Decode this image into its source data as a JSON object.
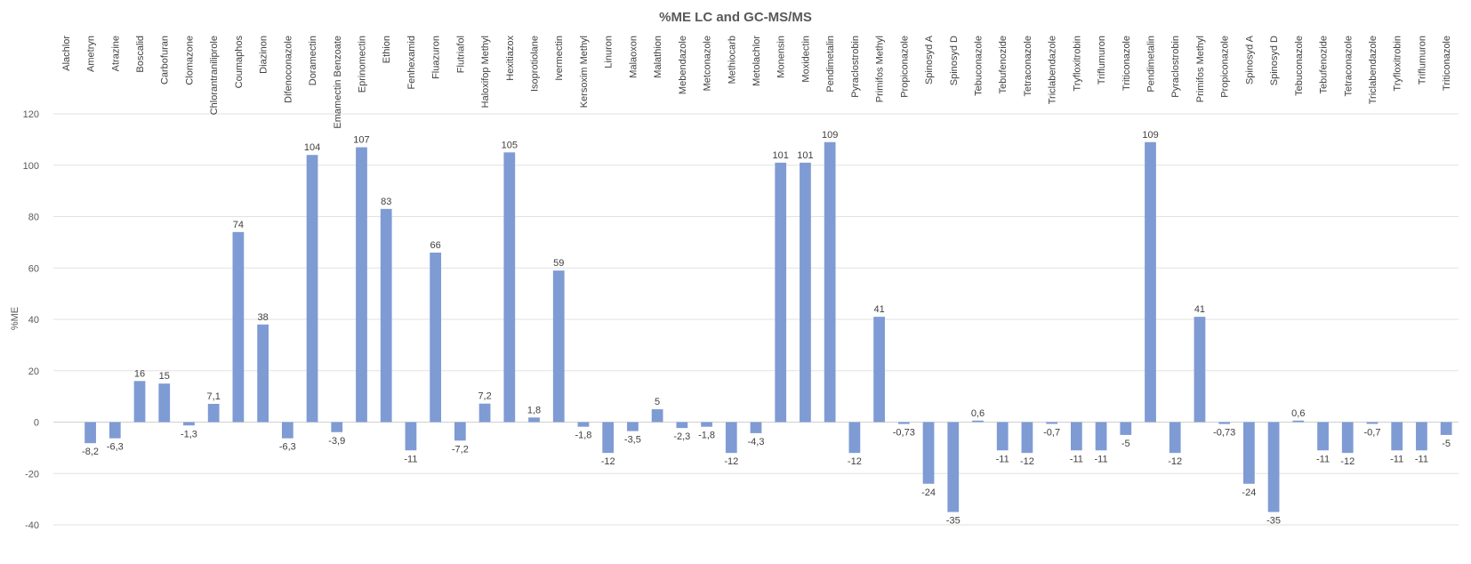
{
  "chart_data": {
    "type": "bar",
    "title": "%ME LC and GC-MS/MS",
    "xlabel": "",
    "ylabel": "%ME",
    "ylim": [
      -40,
      120
    ],
    "yticks": [
      -40,
      -20,
      0,
      20,
      40,
      60,
      80,
      100,
      120
    ],
    "grid": true,
    "bar_color": "#7f9bd4",
    "categories": [
      "Alachlor",
      "Ametryn",
      "Atrazine",
      "Boscalid",
      "Carbofuran",
      "Clomazone",
      "Chlorantraniliprole",
      "Coumaphos",
      "Diazinon",
      "Difenoconazole",
      "Doramectin",
      "Emamectin Benzoate",
      "Eprinomectin",
      "Ethion",
      "Fenhexamid",
      "Fluazuron",
      "Flutriafol",
      "Haloxifop Methyl",
      "Hexitiazox",
      "Isoprotiolane",
      "Ivermectin",
      "Kersoxim Methyl",
      "Linuron",
      "Malaoxon",
      "Malathion",
      "Mebendazole",
      "Metconazole",
      "Methiocarb",
      "Metolachlor",
      "Monensin",
      "Moxidectin",
      "Pendimetalin",
      "Pyraclostrobin",
      "Primifos Methyl",
      "Propiconazole",
      "Spinosyd A",
      "Spinosyd D",
      "Tebuconazole",
      "Tebufenozide",
      "Tetraconazole",
      "Triclabendazole",
      "Tryfloxitrobin",
      "Triflumuron",
      "Triticonazole",
      "Pendimetalin",
      "Pyraclostrobin",
      "Primifos Methyl",
      "Propiconazole",
      "Spinosyd A",
      "Spinosyd D",
      "Tebuconazole",
      "Tebufenozide",
      "Tetraconazole",
      "Triclabendazole",
      "Tryfloxitrobin",
      "Triflumuron",
      "Triticonazole"
    ],
    "values": [
      null,
      -8.2,
      -6.3,
      16,
      15,
      -1.3,
      7.1,
      74,
      38,
      -6.3,
      104,
      -3.9,
      107,
      83,
      -11,
      66,
      -7.2,
      7.2,
      105,
      1.8,
      59,
      -1.8,
      -12,
      -3.5,
      5,
      -2.3,
      -1.8,
      -12,
      -4.3,
      101,
      101,
      109,
      -12,
      41,
      -0.73,
      -24,
      -35,
      0.6,
      -11,
      -12,
      -0.7,
      -11,
      -11,
      -5,
      109,
      -12,
      41,
      -0.73,
      -24,
      -35,
      0.6,
      -11,
      -12,
      -0.7,
      -11,
      -11,
      -5
    ],
    "data_labels": [
      "",
      "-8,2",
      "-6,3",
      "16",
      "15",
      "-1,3",
      "7,1",
      "74",
      "38",
      "-6,3",
      "104",
      "-3,9",
      "107",
      "83",
      "-11",
      "66",
      "-7,2",
      "7,2",
      "105",
      "1,8",
      "59",
      "-1,8",
      "-12",
      "-3,5",
      "5",
      "-2,3",
      "-1,8",
      "-12",
      "-4,3",
      "101",
      "101",
      "109",
      "-12",
      "41",
      "-0,73",
      "-24",
      "-35",
      "0,6",
      "-11",
      "-12",
      "-0,7",
      "-11",
      "-11",
      "-5",
      "109",
      "-12",
      "41",
      "-0,73",
      "-24",
      "-35",
      "0,6",
      "-11",
      "-12",
      "-0,7",
      "-11",
      "-11",
      "-5"
    ]
  }
}
